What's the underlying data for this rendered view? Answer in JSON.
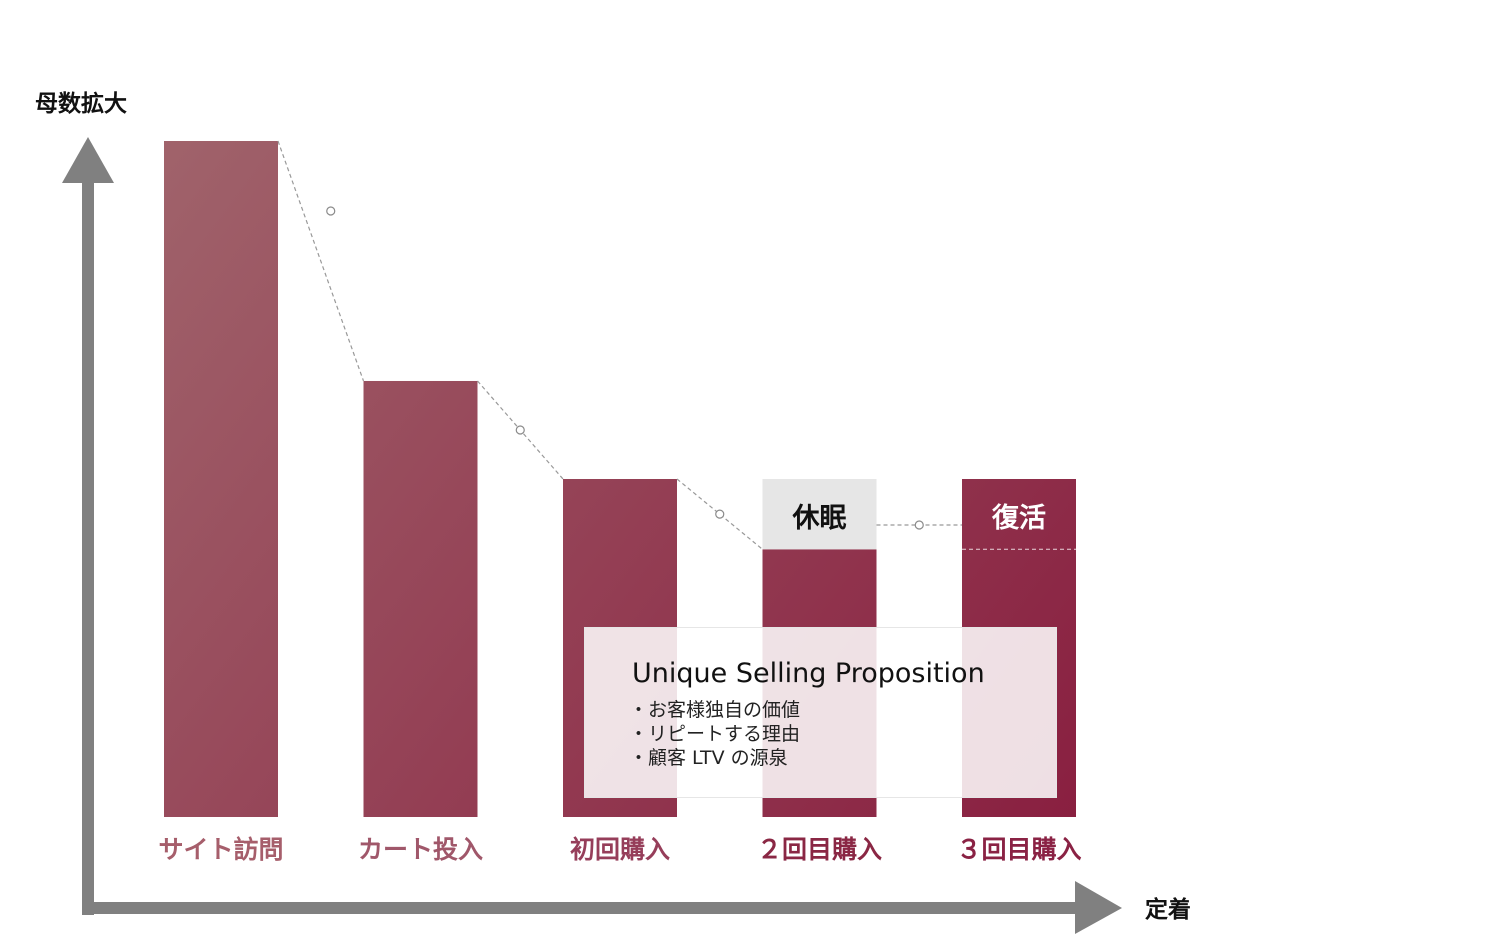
{
  "chart_data": {
    "type": "bar",
    "categories": [
      "サイト訪問",
      "カート投入",
      "初回購入",
      "２回目購入",
      "３回目購入"
    ],
    "values": [
      100,
      64.5,
      50,
      39.6,
      50
    ],
    "ylim": [
      0,
      100
    ],
    "xlabel": "定着",
    "ylabel": "母数拡大",
    "grid": false,
    "legend": "none",
    "annotations": [
      {
        "category": "２回目購入",
        "label": "休眠"
      },
      {
        "category": "３回目購入",
        "label": "復活"
      }
    ],
    "usp": {
      "title": "Unique Selling Proposition",
      "items": [
        "・お客様独自の価値",
        "・リピートする理由",
        "・顧客 LTV の源泉"
      ]
    },
    "colors": {
      "bar_start": "#a0636b",
      "bar_end": "#891f40",
      "dormant_fill": "#e6e6e6",
      "axis": "#808080",
      "connector": "#999999"
    }
  }
}
